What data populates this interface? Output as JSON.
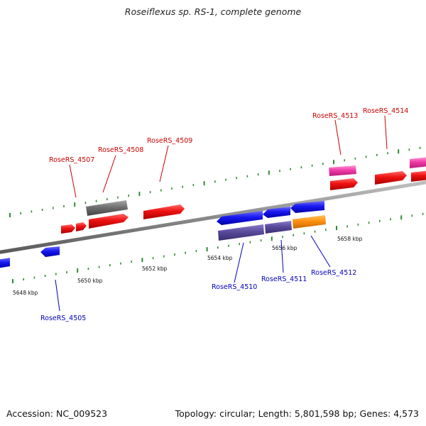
{
  "title": "Roseiflexus sp. RS-1, complete genome",
  "footer": {
    "accession": "Accession: NC_009523",
    "summary": "Topology: circular; Length: 5,801,598 bp; Genes: 4,573"
  },
  "colors": {
    "backbone": "#8a8a8a",
    "tick": "#2e8b2e",
    "forward_label": "#cc0000",
    "reverse_label": "#0000bb"
  },
  "kbp_labels": [
    "5648 kbp",
    "5650 kbp",
    "5652 kbp",
    "5654 kbp",
    "5656 kbp",
    "5658 kbp"
  ],
  "genes_forward": [
    "RoseRS_4507",
    "RoseRS_4508",
    "RoseRS_4509",
    "RoseRS_4513",
    "RoseRS_4514"
  ],
  "genes_reverse": [
    "RoseRS_4505",
    "RoseRS_4510",
    "RoseRS_4511",
    "RoseRS_4512"
  ]
}
